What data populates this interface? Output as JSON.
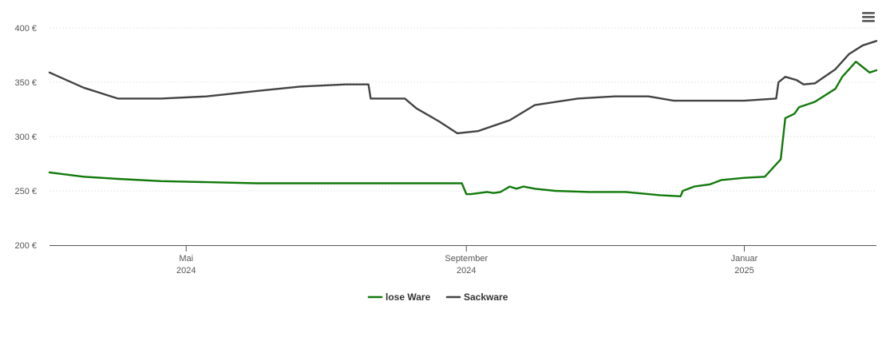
{
  "chart_data": {
    "type": "line",
    "title": "",
    "xlabel": "",
    "ylabel": "",
    "ylim": [
      200,
      400
    ],
    "yticks": [
      200,
      250,
      300,
      350,
      400
    ],
    "ytick_labels": [
      "200 €",
      "250 €",
      "300 €",
      "350 €",
      "400 €"
    ],
    "xlim": [
      "2024-03-02",
      "2025-02-28"
    ],
    "xticks": [
      {
        "date": "2024-05-01",
        "month": "Mai",
        "year": "2024"
      },
      {
        "date": "2024-09-01",
        "month": "September",
        "year": "2024"
      },
      {
        "date": "2025-01-01",
        "month": "Januar",
        "year": "2025"
      }
    ],
    "grid": "horizontal",
    "legend_position": "bottom-center",
    "series": [
      {
        "name": "lose Ware",
        "color": "#117a0b",
        "points": [
          [
            "2024-03-02",
            267
          ],
          [
            "2024-03-17",
            263
          ],
          [
            "2024-04-01",
            261
          ],
          [
            "2024-04-20",
            259
          ],
          [
            "2024-05-10",
            258
          ],
          [
            "2024-06-01",
            257
          ],
          [
            "2024-07-01",
            257
          ],
          [
            "2024-08-01",
            257
          ],
          [
            "2024-08-30",
            257
          ],
          [
            "2024-09-01",
            247
          ],
          [
            "2024-09-03",
            247
          ],
          [
            "2024-09-10",
            249
          ],
          [
            "2024-09-13",
            248
          ],
          [
            "2024-09-16",
            249
          ],
          [
            "2024-09-20",
            254
          ],
          [
            "2024-09-23",
            252
          ],
          [
            "2024-09-26",
            254
          ],
          [
            "2024-10-01",
            252
          ],
          [
            "2024-10-10",
            250
          ],
          [
            "2024-10-25",
            249
          ],
          [
            "2024-11-10",
            249
          ],
          [
            "2024-11-25",
            246
          ],
          [
            "2024-12-04",
            245
          ],
          [
            "2024-12-05",
            250
          ],
          [
            "2024-12-10",
            254
          ],
          [
            "2024-12-17",
            256
          ],
          [
            "2024-12-22",
            260
          ],
          [
            "2025-01-01",
            262
          ],
          [
            "2025-01-10",
            263
          ],
          [
            "2025-01-17",
            279
          ],
          [
            "2025-01-19",
            317
          ],
          [
            "2025-01-23",
            321
          ],
          [
            "2025-01-25",
            327
          ],
          [
            "2025-02-01",
            332
          ],
          [
            "2025-02-10",
            344
          ],
          [
            "2025-02-13",
            355
          ],
          [
            "2025-02-16",
            362
          ],
          [
            "2025-02-19",
            369
          ],
          [
            "2025-02-22",
            364
          ],
          [
            "2025-02-25",
            359
          ],
          [
            "2025-02-28",
            361
          ]
        ]
      },
      {
        "name": "Sackware",
        "color": "#434343",
        "points": [
          [
            "2024-03-02",
            359
          ],
          [
            "2024-03-17",
            345
          ],
          [
            "2024-04-01",
            335
          ],
          [
            "2024-04-20",
            335
          ],
          [
            "2024-05-10",
            337
          ],
          [
            "2024-06-01",
            342
          ],
          [
            "2024-06-20",
            346
          ],
          [
            "2024-07-10",
            348
          ],
          [
            "2024-07-20",
            348
          ],
          [
            "2024-07-21",
            335
          ],
          [
            "2024-08-01",
            335
          ],
          [
            "2024-08-05",
            335
          ],
          [
            "2024-08-10",
            326
          ],
          [
            "2024-08-20",
            314
          ],
          [
            "2024-08-28",
            303
          ],
          [
            "2024-09-06",
            305
          ],
          [
            "2024-09-20",
            315
          ],
          [
            "2024-10-01",
            329
          ],
          [
            "2024-10-20",
            335
          ],
          [
            "2024-11-05",
            337
          ],
          [
            "2024-11-20",
            337
          ],
          [
            "2024-12-01",
            333
          ],
          [
            "2024-12-15",
            333
          ],
          [
            "2025-01-01",
            333
          ],
          [
            "2025-01-15",
            335
          ],
          [
            "2025-01-16",
            350
          ],
          [
            "2025-01-19",
            355
          ],
          [
            "2025-01-24",
            352
          ],
          [
            "2025-01-27",
            348
          ],
          [
            "2025-02-01",
            349
          ],
          [
            "2025-02-10",
            362
          ],
          [
            "2025-02-16",
            376
          ],
          [
            "2025-02-22",
            384
          ],
          [
            "2025-02-28",
            388
          ]
        ]
      }
    ]
  },
  "legend": {
    "items": [
      {
        "label": "lose Ware",
        "color": "#117a0b"
      },
      {
        "label": "Sackware",
        "color": "#434343"
      }
    ]
  },
  "menu": {
    "icon": "hamburger-menu-icon"
  }
}
